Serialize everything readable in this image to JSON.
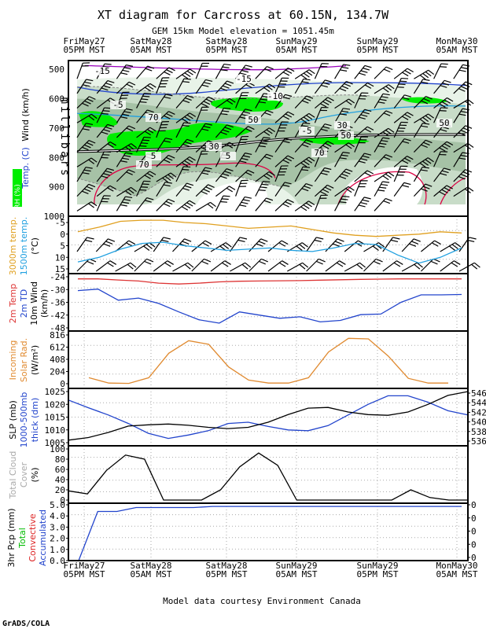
{
  "header": {
    "title": "XT diagram for Carcross at 60.15N, 134.7W",
    "subtitle": "GEM 15km Model elevation = 1051.45m"
  },
  "time_axis": {
    "top_labels": [
      [
        "FriMay27",
        "05PM MST"
      ],
      [
        "SatMay28",
        "05AM MST"
      ],
      [
        "SatMay28",
        "05PM MST"
      ],
      [
        "SunMay29",
        "05AM MST"
      ],
      [
        "SunMay29",
        "05PM MST"
      ],
      [
        "MonMay30",
        "05AM MST"
      ]
    ]
  },
  "footer": {
    "credit": "Model data courtesy Environment Canada",
    "grads": "GrADS/COLA"
  },
  "colors": {
    "rh_band1": "#e8f3e8",
    "rh_band2": "#c8dcc8",
    "rh_band3": "#a6c2a6",
    "rh_high": "#00ee00",
    "temp_line": "#dd0044",
    "wind_line": "#808080",
    "sfc_temp": "#dd3333",
    "td_line": "#2244cc",
    "solar": "#e08a30",
    "thick": "#2244cc",
    "cloud": "#000000",
    "precip": "#2244cc",
    "t3000": "#e0a020",
    "t1500": "#20a0e0"
  },
  "chart_data": [
    {
      "type": "contour",
      "panel": "upper_air",
      "ylabel": "millibars",
      "side_labels": {
        "wind": "Wind (km/h)",
        "temp": "Temp. (C)",
        "rh": "RH (%)"
      },
      "y_ticks": [
        "500",
        "600",
        "700",
        "800",
        "900",
        "1000"
      ],
      "contour_labels": [
        "-15",
        "-15",
        "-10",
        "-5",
        "-5",
        "70",
        "50",
        "30",
        "50",
        "70",
        "30",
        "5",
        "5",
        "70",
        "50"
      ]
    },
    {
      "type": "line",
      "panel": "level_temp",
      "labels": {
        "t3000": "3000m temp.",
        "t1500": "1500m temp.",
        "unit": "(°C)"
      },
      "y_ticks": [
        "-5",
        "0",
        "5",
        "10",
        "15"
      ],
      "ylim": [
        -5,
        15
      ],
      "series": [
        {
          "name": "3000m temp.",
          "values": [
            -1,
            -3,
            -5.5,
            -6,
            -6,
            -5,
            -4.5,
            -3.5,
            -2.5,
            -3,
            -3.5,
            -2,
            -0.5,
            0.5,
            1,
            0.5,
            0,
            -1,
            -0.5
          ]
        },
        {
          "name": "1500m temp.",
          "values": [
            12,
            10,
            6.5,
            4,
            3.5,
            5,
            6,
            7,
            6.5,
            6,
            7,
            7.5,
            6,
            4,
            4.5,
            9,
            12.5,
            10,
            6
          ]
        }
      ]
    },
    {
      "type": "line",
      "panel": "surface",
      "labels": {
        "temp": "2m Temp",
        "td": "2m TD",
        "wind": "10m Wind",
        "unit": "(km/h)"
      },
      "y_ticks": [
        "-24",
        "-30",
        "-36",
        "-42",
        "-48"
      ],
      "ylim": [
        -48,
        -24
      ],
      "series": [
        {
          "name": "2m TD",
          "values": [
            -30.5,
            -29.8,
            -35,
            -34,
            -36.5,
            -40.5,
            -44.2,
            -45.8,
            -40.5,
            -42,
            -43.5,
            -42.8,
            -45.2,
            -44.5,
            -41.8,
            -41.5,
            -36,
            -32.5,
            -32.5,
            -32.3
          ]
        },
        {
          "name": "2m Temp",
          "values": [
            -25,
            -25,
            -25.5,
            -26,
            -27,
            -27.4,
            -27,
            -26.4,
            -26.1,
            -26,
            -25.9,
            -25.8,
            -25.6,
            -25.4,
            -25.2,
            -25.1,
            -25,
            -25,
            -25,
            -25
          ]
        }
      ]
    },
    {
      "type": "line",
      "panel": "solar",
      "labels": {
        "a": "Incoming",
        "b": "Solar Rad.",
        "unit": "(W/m²)"
      },
      "y_ticks": [
        "0",
        "204",
        "408",
        "612",
        "816"
      ],
      "ylim": [
        0,
        816
      ],
      "series": [
        {
          "name": "Incoming Solar Rad.",
          "values": [
            100,
            10,
            5,
            100,
            510,
            720,
            660,
            280,
            60,
            10,
            10,
            100,
            530,
            760,
            750,
            460,
            90,
            10,
            10
          ]
        }
      ]
    },
    {
      "type": "line",
      "panel": "pressure",
      "labels": {
        "slp": "SLP (mb)",
        "thick1": "1000-500mb",
        "thick2": "thick (dm)"
      },
      "y_ticks": [
        "1005",
        "1010",
        "1015",
        "1020",
        "1025"
      ],
      "ylim": [
        1005,
        1025
      ],
      "right_ticks": [
        "536",
        "538",
        "540",
        "542",
        "544",
        "546"
      ],
      "right_lim": [
        535,
        547
      ],
      "series": [
        {
          "name": "SLP (mb)",
          "values": [
            1006,
            1007,
            1009,
            1011.5,
            1012,
            1012.3,
            1011.8,
            1011,
            1010.5,
            1011,
            1013,
            1016,
            1018.5,
            1018.8,
            1017,
            1016,
            1015.7,
            1017,
            1020,
            1023.5,
            1025
          ]
        },
        {
          "name": "1000-500mb thick (dm)",
          "values": [
            545,
            543.2,
            541.5,
            539.5,
            537.2,
            536,
            536.8,
            537.8,
            539.5,
            539.8,
            538.8,
            538,
            537.8,
            539,
            541.5,
            544,
            546,
            546,
            544.5,
            542.5,
            541.5
          ]
        }
      ]
    },
    {
      "type": "line",
      "panel": "cloud",
      "labels": {
        "a": "Total Cloud",
        "b": "Cover",
        "unit": "(%)"
      },
      "y_ticks": [
        "0",
        "20",
        "40",
        "60",
        "80",
        "100"
      ],
      "ylim": [
        0,
        100
      ],
      "series": [
        {
          "name": "Total Cloud Cover",
          "values": [
            18,
            12,
            58,
            88,
            80,
            0,
            0,
            0,
            20,
            65,
            92,
            68,
            0,
            0,
            0,
            0,
            0,
            0,
            20,
            5,
            0,
            0
          ]
        }
      ]
    },
    {
      "type": "line",
      "panel": "precip",
      "labels": {
        "pcp": "3hr Pcp (mm)",
        "total": "Total",
        "conv": "Convective",
        "acc": "Accumulated"
      },
      "y_ticks": [
        "0.0",
        "1.0",
        "2.0",
        "3.0",
        "4.0",
        "5.0"
      ],
      "ylim": [
        0,
        5
      ],
      "right_ticks": [
        "0",
        "0",
        "0",
        "0",
        "0"
      ],
      "series": [
        {
          "name": "Accumulated",
          "values": [
            0,
            4.4,
            4.4,
            4.75,
            4.75,
            4.75,
            4.75,
            4.85,
            4.85,
            4.85,
            4.85,
            4.85,
            4.85,
            4.85,
            4.85,
            4.85,
            4.85,
            4.85,
            4.85,
            4.85,
            4.85
          ]
        }
      ]
    }
  ]
}
